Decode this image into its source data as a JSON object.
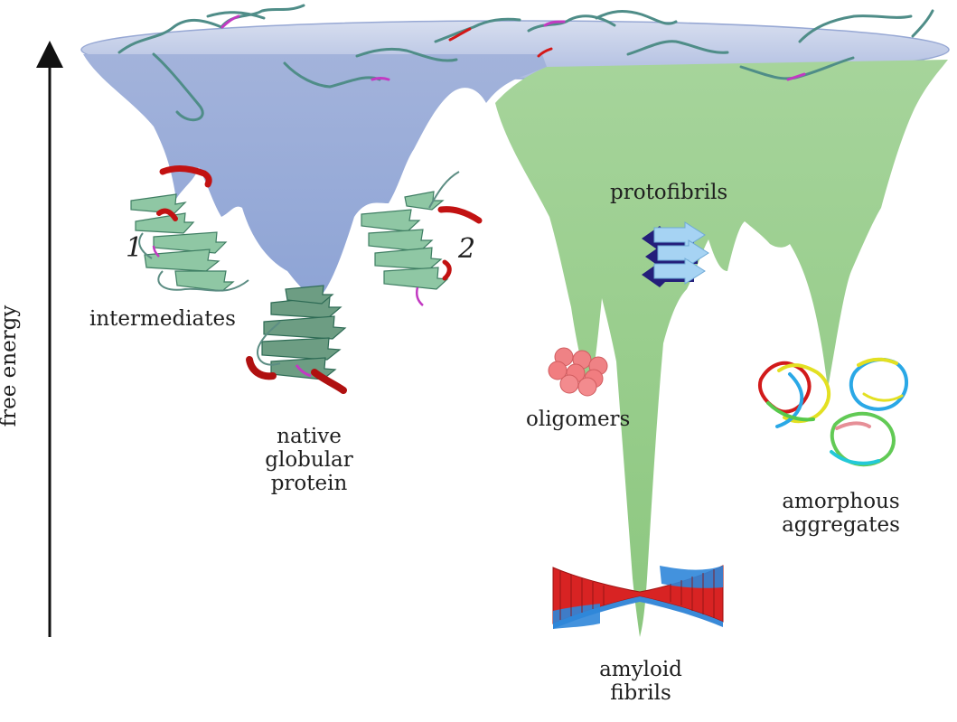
{
  "figure": {
    "axis_label": "free energy",
    "markers": {
      "one": "1",
      "two": "2"
    },
    "labels": {
      "intermediates": "intermediates",
      "native_line1": "native",
      "native_line2": "globular",
      "native_line3": "protein",
      "protofibrils": "protofibrils",
      "oligomers": "oligomers",
      "amorphous_line1": "amorphous",
      "amorphous_line2": "aggregates",
      "amyloid_line1": "amyloid",
      "amyloid_line2": "fibrils"
    }
  },
  "colors": {
    "folding_funnel": "#a8b6dc",
    "aggregation_funnel": "#a7d58f",
    "rim": "#c5cfe6",
    "chain": "#4f8d88",
    "helix_red": "#d41818",
    "helix_blue": "#2a8ae0",
    "arrow_dark": "#241e7a",
    "arrow_light": "#9fd0f2",
    "sphere": "#f07678"
  }
}
